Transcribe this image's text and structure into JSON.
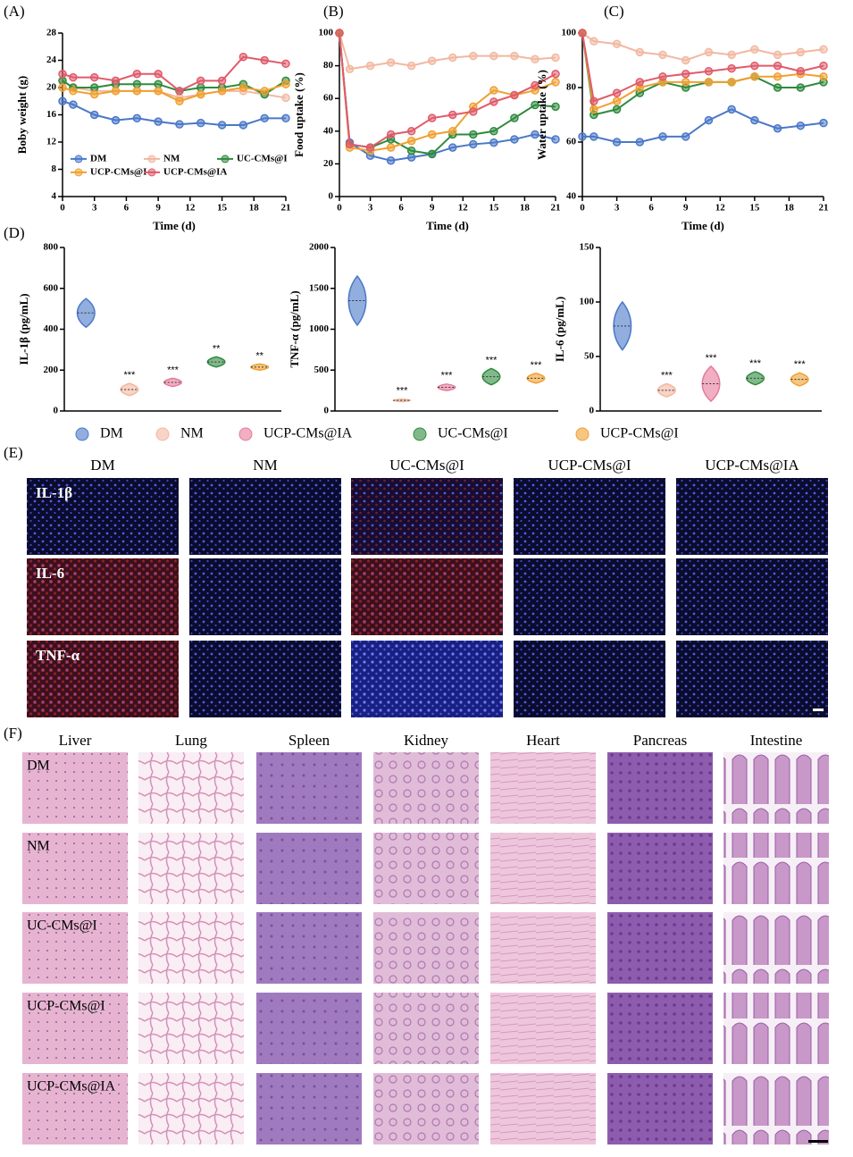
{
  "panel_labels": [
    "(A)",
    "(B)",
    "(C)",
    "(D)",
    "(E)",
    "(F)"
  ],
  "chart_data": [
    {
      "type": "line",
      "x_label": "Time (d)",
      "y_label": "Boby weight (g)",
      "x": [
        0,
        1,
        3,
        5,
        7,
        9,
        11,
        13,
        15,
        17,
        19,
        21
      ],
      "xlim": [
        0,
        21
      ],
      "xticks": [
        0,
        3,
        6,
        9,
        12,
        15,
        18,
        21
      ],
      "ylim": [
        4,
        28
      ],
      "yticks": [
        4,
        8,
        12,
        16,
        20,
        24,
        28
      ],
      "legend": "inside-bottom",
      "series": [
        {
          "name": "DM",
          "color": "#4a78c8",
          "values": [
            18,
            17.5,
            16,
            15.2,
            15.5,
            15,
            14.6,
            14.8,
            14.5,
            14.5,
            15.5,
            15.5
          ]
        },
        {
          "name": "NM",
          "color": "#f2b8a0",
          "values": [
            21,
            20,
            19.5,
            19.5,
            19.5,
            19.5,
            18.5,
            19,
            19.5,
            19.5,
            19,
            18.5
          ]
        },
        {
          "name": "UC-CMs@I",
          "color": "#2e8b3e",
          "values": [
            21,
            20,
            20,
            20.5,
            20.5,
            20.5,
            19.5,
            20,
            20,
            20.5,
            19,
            21
          ]
        },
        {
          "name": "UCP-CMs@I",
          "color": "#f0a030",
          "values": [
            20,
            19.5,
            19,
            19.5,
            19.5,
            19.5,
            18,
            19,
            19.5,
            20,
            19.5,
            20.5
          ]
        },
        {
          "name": "UCP-CMs@IA",
          "color": "#e05a6a",
          "values": [
            22,
            21.5,
            21.5,
            21,
            22,
            22,
            19.5,
            21,
            21,
            24.5,
            24,
            23.5
          ]
        }
      ]
    },
    {
      "type": "line",
      "x_label": "Time (d)",
      "y_label": "Food uptake (%)",
      "x": [
        0,
        1,
        3,
        5,
        7,
        9,
        11,
        13,
        15,
        17,
        19,
        21
      ],
      "xlim": [
        0,
        21
      ],
      "xticks": [
        0,
        3,
        6,
        9,
        12,
        15,
        18,
        21
      ],
      "ylim": [
        0,
        100
      ],
      "yticks": [
        0,
        20,
        40,
        60,
        80,
        100
      ],
      "series": [
        {
          "color": "#4a78c8",
          "values": [
            100,
            33,
            25,
            22,
            24,
            26,
            30,
            32,
            33,
            35,
            38,
            35
          ]
        },
        {
          "color": "#f2b8a0",
          "values": [
            100,
            78,
            80,
            82,
            80,
            83,
            85,
            86,
            86,
            86,
            84,
            85
          ]
        },
        {
          "color": "#2e8b3e",
          "values": [
            100,
            32,
            30,
            35,
            28,
            26,
            38,
            38,
            40,
            48,
            56,
            55
          ]
        },
        {
          "color": "#f0a030",
          "values": [
            100,
            30,
            28,
            30,
            34,
            38,
            40,
            55,
            65,
            62,
            65,
            70
          ]
        },
        {
          "color": "#e05a6a",
          "values": [
            100,
            32,
            30,
            38,
            40,
            48,
            50,
            52,
            58,
            62,
            68,
            75
          ]
        }
      ]
    },
    {
      "type": "line",
      "x_label": "Time (d)",
      "y_label": "Water uptake (%)",
      "x": [
        0,
        1,
        3,
        5,
        7,
        9,
        11,
        13,
        15,
        17,
        19,
        21
      ],
      "xlim": [
        0,
        21
      ],
      "xticks": [
        0,
        3,
        6,
        9,
        12,
        15,
        18,
        21
      ],
      "ylim": [
        40,
        100
      ],
      "yticks": [
        40,
        60,
        80,
        100
      ],
      "series": [
        {
          "color": "#4a78c8",
          "values": [
            62,
            62,
            60,
            60,
            62,
            62,
            68,
            72,
            68,
            65,
            66,
            67
          ]
        },
        {
          "color": "#f2b8a0",
          "values": [
            100,
            97,
            96,
            93,
            92,
            90,
            93,
            92,
            94,
            92,
            93,
            94
          ]
        },
        {
          "color": "#2e8b3e",
          "values": [
            100,
            70,
            72,
            78,
            82,
            80,
            82,
            82,
            84,
            80,
            80,
            82
          ]
        },
        {
          "color": "#f0a030",
          "values": [
            100,
            72,
            75,
            80,
            82,
            82,
            82,
            82,
            84,
            84,
            85,
            84
          ]
        },
        {
          "color": "#e05a6a",
          "values": [
            100,
            75,
            78,
            82,
            84,
            85,
            86,
            87,
            88,
            88,
            86,
            88
          ]
        }
      ]
    },
    {
      "type": "violin",
      "y_label": "IL-1β (pg/mL)",
      "ylim": [
        0,
        800
      ],
      "yticks": [
        0,
        200,
        400,
        600,
        800
      ],
      "colors": [
        "#4a78c8",
        "#f2b8a0",
        "#e67a9a",
        "#2e8b3e",
        "#f0a030"
      ],
      "values": [
        480,
        105,
        140,
        240,
        215
      ],
      "spread": [
        70,
        30,
        20,
        25,
        15
      ],
      "annotations": [
        null,
        "***",
        "***",
        "**",
        "**"
      ]
    },
    {
      "type": "violin",
      "y_label": "TNF-α (pg/mL)",
      "ylim": [
        0,
        2000
      ],
      "yticks": [
        0,
        500,
        1000,
        1500,
        2000
      ],
      "colors": [
        "#4a78c8",
        "#f2b8a0",
        "#e67a9a",
        "#2e8b3e",
        "#f0a030"
      ],
      "values": [
        1350,
        130,
        290,
        420,
        400
      ],
      "spread": [
        300,
        15,
        40,
        100,
        60
      ],
      "annotations": [
        null,
        "***",
        "***",
        "***",
        "***"
      ]
    },
    {
      "type": "violin",
      "y_label": "IL-6 (pg/mL)",
      "ylim": [
        0,
        150
      ],
      "yticks": [
        0,
        50,
        100,
        150
      ],
      "colors": [
        "#4a78c8",
        "#f2b8a0",
        "#e67a9a",
        "#2e8b3e",
        "#f0a030"
      ],
      "values": [
        78,
        19,
        25,
        30,
        29
      ],
      "spread": [
        22,
        6,
        16,
        6,
        6
      ],
      "annotations": [
        null,
        "***",
        "***",
        "***",
        "***"
      ]
    }
  ],
  "legend_d": {
    "names": [
      "DM",
      "NM",
      "UCP-CMs@IA",
      "UC-CMs@I",
      "UCP-CMs@I"
    ],
    "colors": [
      "#4a78c8",
      "#f2b8a0",
      "#e67a9a",
      "#2e8b3e",
      "#f0a030"
    ]
  },
  "panel_e": {
    "columns": [
      "DM",
      "NM",
      "UC-CMs@I",
      "UCP-CMs@I",
      "UCP-CMs@IA"
    ],
    "rows": [
      "IL-1β",
      "IL-6",
      "TNF-α"
    ]
  },
  "panel_f": {
    "columns": [
      "Liver",
      "Lung",
      "Spleen",
      "Kidney",
      "Heart",
      "Pancreas",
      "Intestine"
    ],
    "rows": [
      "DM",
      "NM",
      "UC-CMs@I",
      "UCP-CMs@I",
      "UCP-CMs@IA"
    ]
  }
}
